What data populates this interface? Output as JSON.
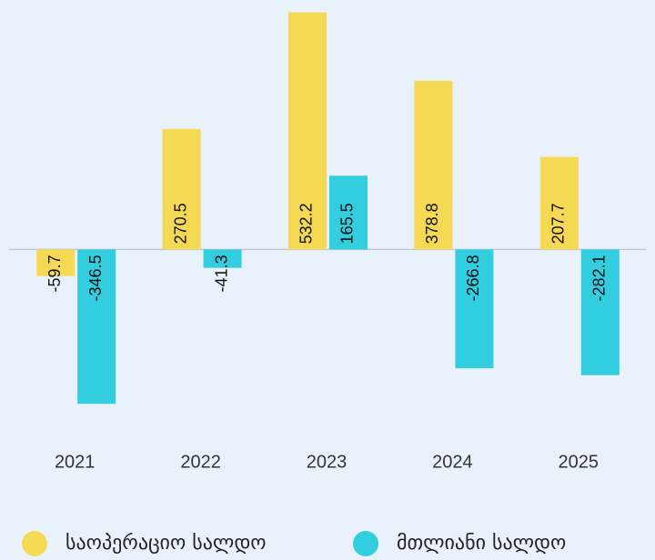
{
  "chart_data": {
    "type": "bar",
    "categories": [
      "2021",
      "2022",
      "2023",
      "2024",
      "2025"
    ],
    "series": [
      {
        "name": "საოპერაციო სალდო",
        "color": "#f5d955",
        "values": [
          -59.7,
          270.5,
          532.2,
          378.8,
          207.7
        ]
      },
      {
        "name": "მთლიანი სალდო",
        "color": "#33cde0",
        "values": [
          -346.5,
          -41.3,
          165.5,
          -266.8,
          -282.1
        ]
      }
    ],
    "ylim": [
      -440,
      560
    ],
    "legend": "bottom"
  }
}
